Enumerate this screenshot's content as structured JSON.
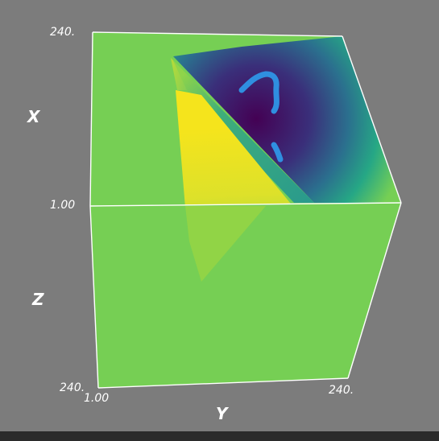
{
  "scene": {
    "axes": {
      "x_title": "X",
      "y_title": "Y",
      "z_title": "Z"
    },
    "ticks": {
      "x_top": "240.",
      "x_origin": "1.00",
      "z_bottom": "240.",
      "y_origin": "1.00",
      "y_end": "240."
    },
    "colors": {
      "background": "#7c7c7c",
      "volume_base": "#76cf54",
      "yellow": "#f1e51d",
      "dark_purple": "#440154",
      "teal": "#2a9b8c",
      "annotation": "#2f8fe0",
      "edges": "#ffffff"
    }
  }
}
